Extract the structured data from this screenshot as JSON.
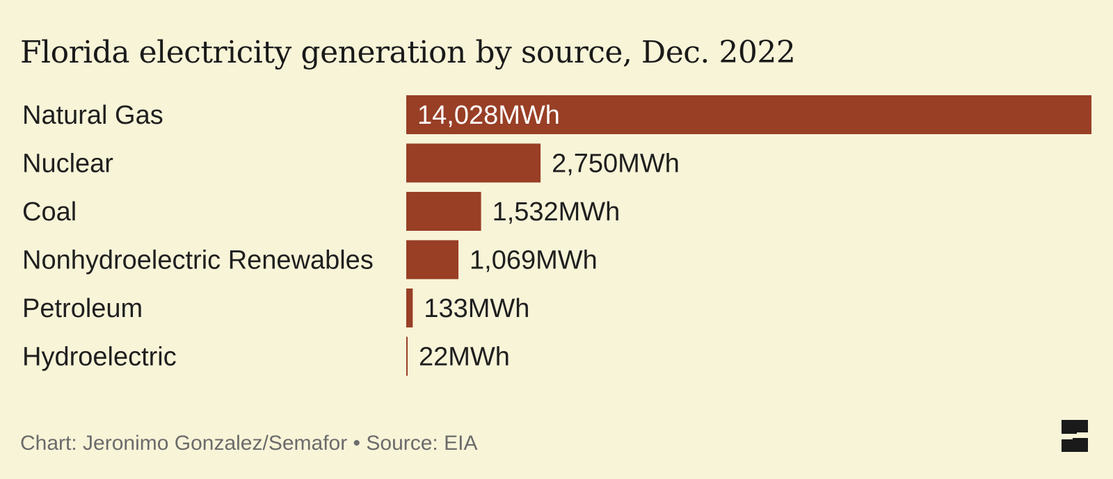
{
  "title": "Florida electricity generation by source, Dec. 2022",
  "footer": "Chart: Jeronimo Gonzalez/Semafor • Source: EIA",
  "colors": {
    "background": "#f8f4d8",
    "bar": "#983f26",
    "text": "#1f1f1f",
    "inside_label": "#ffffff",
    "footer": "#6b6b6b"
  },
  "chart_data": {
    "type": "bar",
    "orientation": "horizontal",
    "title": "Florida electricity generation by source, Dec. 2022",
    "categories": [
      "Natural Gas",
      "Nuclear",
      "Coal",
      "Nonhydroelectric Renewables",
      "Petroleum",
      "Hydroelectric"
    ],
    "values": [
      14028,
      2750,
      1532,
      1069,
      133,
      22
    ],
    "value_labels": [
      "14,028MWh",
      "2,750MWh",
      "1,532MWh",
      "1,069MWh",
      "133MWh",
      "22MWh"
    ],
    "unit": "MWh",
    "xlim": [
      0,
      14028
    ],
    "grid": false,
    "legend": "none"
  }
}
